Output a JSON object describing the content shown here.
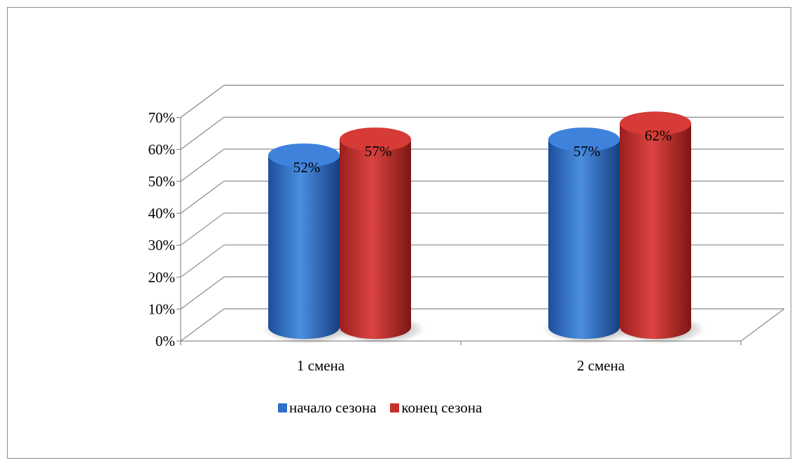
{
  "chart_data": {
    "type": "bar",
    "style": "3d-cylinder",
    "categories": [
      "1 смена",
      "2 смена"
    ],
    "series": [
      {
        "name": "начало сезона",
        "values": [
          52,
          57
        ],
        "labels": [
          "52%",
          "57%"
        ],
        "color": "#2f6fc8"
      },
      {
        "name": "конец сезона",
        "values": [
          57,
          62
        ],
        "labels": [
          "57%",
          "62%"
        ],
        "color": "#c8302c"
      }
    ],
    "y_ticks": [
      "0%",
      "10%",
      "20%",
      "30%",
      "40%",
      "50%",
      "60%",
      "70%"
    ],
    "ylim": [
      0,
      70
    ],
    "grid": true,
    "legend_position": "bottom",
    "title": "",
    "xlabel": "",
    "ylabel": ""
  }
}
